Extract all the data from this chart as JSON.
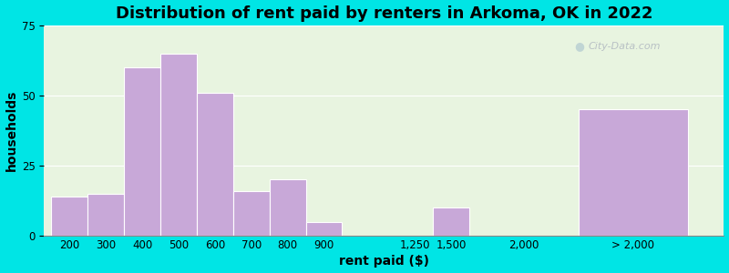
{
  "title": "Distribution of rent paid by renters in Arkoma, OK in 2022",
  "xlabel": "rent paid ($)",
  "ylabel": "households",
  "bar_color": "#c8a8d8",
  "background_outer": "#00e5e5",
  "background_inner": "#e8f4e0",
  "bar_labels": [
    "200",
    "300",
    "400",
    "500",
    "600",
    "700",
    "800",
    "900",
    "1,250",
    "1,500",
    "2,000",
    "> 2,000"
  ],
  "bar_values": [
    14,
    15,
    60,
    65,
    51,
    16,
    20,
    5,
    0,
    10,
    0,
    45
  ],
  "bar_left": [
    0,
    1,
    2,
    3,
    4,
    5,
    6,
    7,
    9.5,
    10.5,
    12.5,
    14.5
  ],
  "bar_widths": [
    1,
    1,
    1,
    1,
    1,
    1,
    1,
    1,
    1,
    1,
    1,
    3
  ],
  "tick_positions": [
    0.5,
    1.5,
    2.5,
    3.5,
    4.5,
    5.5,
    6.5,
    7.5,
    10.0,
    11.0,
    13.0,
    16.0
  ],
  "ylim": [
    0,
    75
  ],
  "yticks": [
    0,
    25,
    50,
    75
  ],
  "xlim": [
    -0.2,
    18.5
  ],
  "title_fontsize": 13,
  "axis_label_fontsize": 10,
  "tick_fontsize": 8.5,
  "watermark_text": "City-Data.com"
}
